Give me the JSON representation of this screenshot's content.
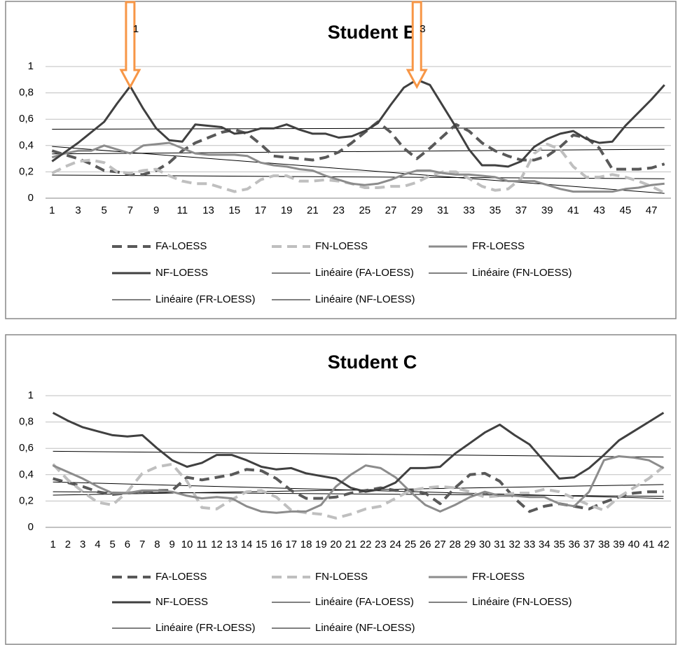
{
  "chart_data": [
    {
      "type": "line",
      "title": "Student B",
      "categories": [
        1,
        null,
        3,
        null,
        5,
        null,
        7,
        null,
        9,
        null,
        11,
        null,
        13,
        null,
        15,
        null,
        17,
        null,
        19,
        null,
        21,
        null,
        23,
        null,
        25,
        null,
        27,
        null,
        29,
        null,
        31,
        null,
        33,
        null,
        35,
        null,
        37,
        null,
        39,
        null,
        41,
        null,
        43,
        null,
        45,
        null,
        47,
        null
      ],
      "series": [
        {
          "name": "FA-LOESS",
          "color": "#595959",
          "dash": true,
          "trendline": {
            "name": "Linéaire (FA-LOESS)"
          },
          "values": [
            0.36,
            0.33,
            0.3,
            0.26,
            0.21,
            0.2,
            0.18,
            0.18,
            0.21,
            0.27,
            0.36,
            0.42,
            0.46,
            0.5,
            0.52,
            0.49,
            0.41,
            0.32,
            0.31,
            0.3,
            0.29,
            0.31,
            0.35,
            0.42,
            0.5,
            0.58,
            0.5,
            0.38,
            0.3,
            0.38,
            0.47,
            0.56,
            0.51,
            0.42,
            0.36,
            0.32,
            0.29,
            0.29,
            0.32,
            0.39,
            0.48,
            0.46,
            0.38,
            0.22,
            0.22,
            0.22,
            0.23,
            0.26
          ]
        },
        {
          "name": "FN-LOESS",
          "color": "#bfbfbf",
          "dash": true,
          "trendline": {
            "name": "Linéaire (FN-LOESS)"
          },
          "values": [
            0.19,
            0.24,
            0.28,
            0.29,
            0.27,
            0.2,
            0.19,
            0.21,
            0.22,
            0.17,
            0.13,
            0.11,
            0.11,
            0.08,
            0.05,
            0.07,
            0.14,
            0.17,
            0.17,
            0.13,
            0.13,
            0.14,
            0.13,
            0.11,
            0.08,
            0.08,
            0.09,
            0.09,
            0.12,
            0.17,
            0.2,
            0.2,
            0.15,
            0.09,
            0.06,
            0.07,
            0.15,
            0.34,
            0.41,
            0.37,
            0.24,
            0.16,
            0.16,
            0.18,
            0.16,
            0.13,
            0.09,
            0.04
          ]
        },
        {
          "name": "FR-LOESS",
          "color": "#8c8c8c",
          "dash": false,
          "trendline": {
            "name": "Linéaire (FR-LOESS)"
          },
          "values": [
            0.31,
            0.34,
            0.36,
            0.36,
            0.4,
            0.37,
            0.34,
            0.4,
            0.41,
            0.42,
            0.38,
            0.34,
            0.33,
            0.33,
            0.33,
            0.32,
            0.27,
            0.25,
            0.24,
            0.22,
            0.21,
            0.17,
            0.14,
            0.11,
            0.1,
            0.11,
            0.14,
            0.18,
            0.21,
            0.21,
            0.19,
            0.18,
            0.18,
            0.17,
            0.16,
            0.13,
            0.13,
            0.13,
            0.1,
            0.07,
            0.05,
            0.05,
            0.05,
            0.05,
            0.07,
            0.08,
            0.1,
            0.11
          ]
        },
        {
          "name": "NF-LOESS",
          "color": "#404040",
          "dash": false,
          "trendline": {
            "name": "Linéaire (NF-LOESS)"
          },
          "values": [
            0.28,
            0.35,
            0.42,
            0.5,
            0.58,
            0.72,
            0.85,
            0.68,
            0.53,
            0.44,
            0.43,
            0.56,
            0.55,
            0.54,
            0.49,
            0.5,
            0.53,
            0.53,
            0.56,
            0.52,
            0.49,
            0.49,
            0.46,
            0.47,
            0.51,
            0.57,
            0.71,
            0.84,
            0.9,
            0.86,
            0.7,
            0.54,
            0.37,
            0.25,
            0.25,
            0.24,
            0.28,
            0.39,
            0.45,
            0.49,
            0.51,
            0.45,
            0.42,
            0.43,
            0.55,
            0.65,
            0.75,
            0.86
          ]
        }
      ],
      "ylim": [
        0,
        1
      ],
      "yticks": [
        0,
        {
          "value": 0.2,
          "label": "0,2"
        },
        {
          "value": 0.4,
          "label": "0,4"
        },
        {
          "value": 0.6,
          "label": "0,6"
        },
        {
          "value": 0.8,
          "label": "0,8"
        },
        1
      ],
      "grid": true,
      "annotations": [
        {
          "text": "1",
          "x": 7,
          "color": "#f79646"
        },
        {
          "text": "3",
          "x": 29,
          "color": "#f79646"
        }
      ]
    },
    {
      "type": "line",
      "title": "Student C",
      "categories": [
        1,
        2,
        3,
        4,
        5,
        6,
        7,
        8,
        9,
        10,
        11,
        12,
        13,
        14,
        15,
        16,
        17,
        18,
        19,
        20,
        21,
        22,
        23,
        24,
        25,
        26,
        27,
        28,
        29,
        30,
        31,
        32,
        33,
        34,
        35,
        36,
        37,
        38,
        39,
        40,
        41,
        42
      ],
      "series": [
        {
          "name": "FA-LOESS",
          "color": "#595959",
          "dash": true,
          "trendline": {
            "name": "Linéaire (FA-LOESS)"
          },
          "values": [
            0.37,
            0.34,
            0.31,
            0.27,
            0.25,
            0.26,
            0.27,
            0.28,
            0.28,
            0.38,
            0.36,
            0.38,
            0.4,
            0.44,
            0.43,
            0.37,
            0.28,
            0.22,
            0.22,
            0.23,
            0.26,
            0.28,
            0.3,
            0.28,
            0.28,
            0.26,
            0.18,
            0.3,
            0.4,
            0.41,
            0.35,
            0.22,
            0.12,
            0.16,
            0.18,
            0.16,
            0.14,
            0.19,
            0.23,
            0.26,
            0.27,
            0.27
          ]
        },
        {
          "name": "FN-LOESS",
          "color": "#bfbfbf",
          "dash": true,
          "trendline": {
            "name": "Linéaire (FN-LOESS)"
          },
          "values": [
            0.48,
            0.36,
            0.27,
            0.19,
            0.17,
            0.27,
            0.41,
            0.46,
            0.48,
            0.35,
            0.15,
            0.14,
            0.21,
            0.27,
            0.28,
            0.23,
            0.13,
            0.11,
            0.1,
            0.07,
            0.1,
            0.14,
            0.16,
            0.22,
            0.28,
            0.3,
            0.31,
            0.3,
            0.27,
            0.23,
            0.24,
            0.26,
            0.26,
            0.29,
            0.27,
            0.22,
            0.17,
            0.13,
            0.23,
            0.3,
            0.37,
            0.46
          ]
        },
        {
          "name": "FR-LOESS",
          "color": "#8c8c8c",
          "dash": false,
          "trendline": {
            "name": "Linéaire (FR-LOESS)"
          },
          "values": [
            0.47,
            0.42,
            0.37,
            0.31,
            0.26,
            0.26,
            0.28,
            0.28,
            0.27,
            0.24,
            0.22,
            0.23,
            0.22,
            0.16,
            0.12,
            0.11,
            0.12,
            0.12,
            0.17,
            0.31,
            0.4,
            0.47,
            0.45,
            0.38,
            0.27,
            0.17,
            0.12,
            0.17,
            0.23,
            0.27,
            0.24,
            0.24,
            0.23,
            0.23,
            0.18,
            0.16,
            0.27,
            0.51,
            0.54,
            0.53,
            0.51,
            0.45
          ]
        },
        {
          "name": "NF-LOESS",
          "color": "#404040",
          "dash": false,
          "trendline": {
            "name": "Linéaire (NF-LOESS)"
          },
          "values": [
            0.87,
            0.81,
            0.76,
            0.73,
            0.7,
            0.69,
            0.7,
            0.6,
            0.51,
            0.46,
            0.49,
            0.55,
            0.55,
            0.51,
            0.46,
            0.44,
            0.45,
            0.41,
            0.39,
            0.37,
            0.3,
            0.27,
            0.29,
            0.34,
            0.45,
            0.45,
            0.46,
            0.56,
            0.64,
            0.72,
            0.78,
            0.7,
            0.63,
            0.5,
            0.37,
            0.38,
            0.45,
            0.55,
            0.66,
            0.73,
            0.8,
            0.87
          ]
        }
      ],
      "ylim": [
        0,
        1
      ],
      "yticks": [
        0,
        {
          "value": 0.2,
          "label": "0,2"
        },
        {
          "value": 0.4,
          "label": "0,4"
        },
        {
          "value": 0.6,
          "label": "0,6"
        },
        {
          "value": 0.8,
          "label": "0,8"
        },
        1
      ],
      "grid": true
    }
  ]
}
